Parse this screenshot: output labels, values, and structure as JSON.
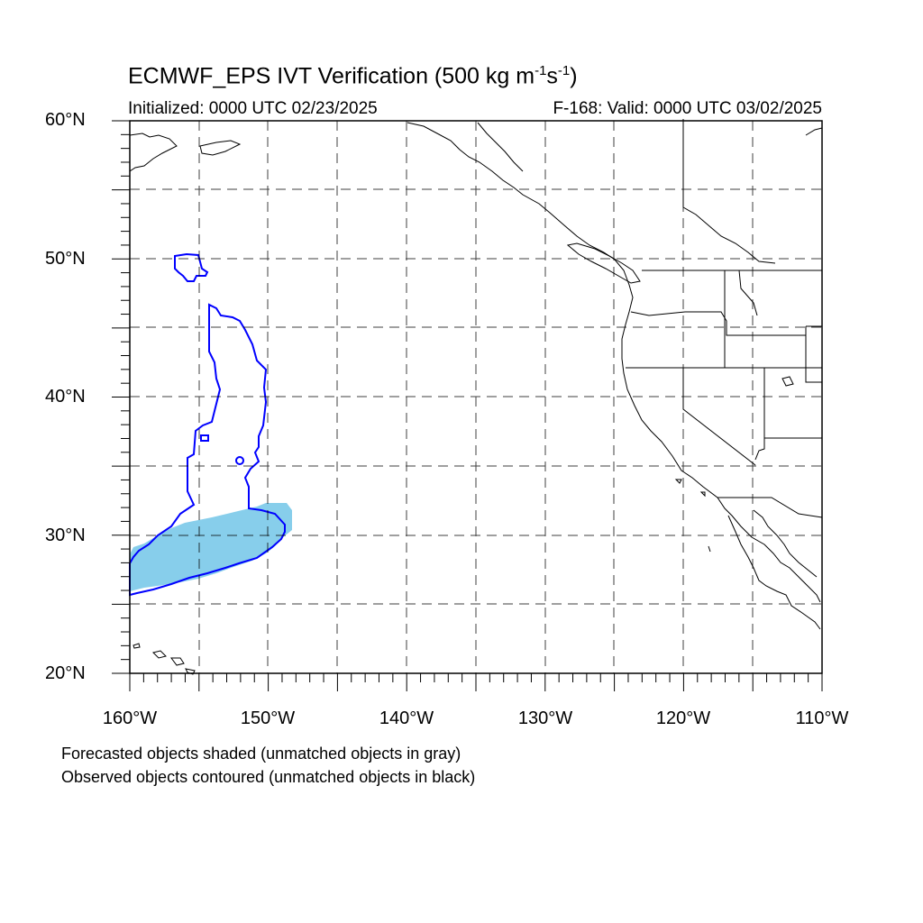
{
  "title": {
    "main": "ECMWF_EPS IVT Verification (500 kg m",
    "exp1": "-1",
    "mid": "s",
    "exp2": "-1",
    "end": ")"
  },
  "subtitle_left": "Initialized: 0000 UTC 02/23/2025",
  "subtitle_right": "F-168: Valid: 0000 UTC 03/02/2025",
  "notes": {
    "forecast": "Forecasted objects shaded (unmatched objects in gray)",
    "observed": "Observed objects contoured (unmatched objects in black)"
  },
  "axes": {
    "lat_labels": [
      "60°N",
      "50°N",
      "40°N",
      "30°N",
      "20°N"
    ],
    "lon_labels": [
      "160°W",
      "150°W",
      "140°W",
      "130°W",
      "120°W",
      "110°W"
    ]
  },
  "colors": {
    "forecast_fill": "#87ceeb",
    "observed_contour": "#0000ff",
    "coastline": "#000000"
  }
}
